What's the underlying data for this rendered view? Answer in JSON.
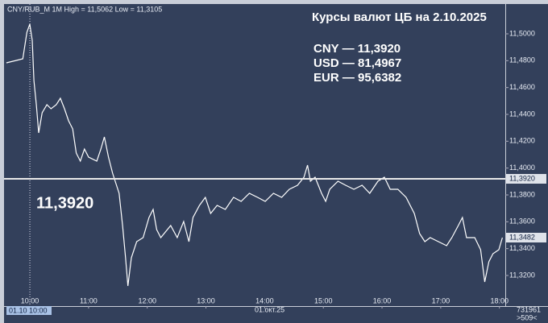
{
  "chart_data": {
    "type": "line",
    "header": "CNY/RUB_M 1M High = 11,5062 Low = 11,3105",
    "title": "Курсы валют ЦБ на 2.10.2025",
    "rates": [
      "CNY — 11,3920",
      "USD — 81,4967",
      "EUR — 95,6382"
    ],
    "color": "#ffffff",
    "x": [
      9.6,
      9.77,
      9.88,
      9.95,
      10.0,
      10.04,
      10.07,
      10.11,
      10.15,
      10.21,
      10.29,
      10.36,
      10.45,
      10.52,
      10.59,
      10.66,
      10.73,
      10.79,
      10.86,
      10.93,
      11.0,
      11.14,
      11.21,
      11.27,
      11.34,
      11.41,
      11.52,
      11.58,
      11.63,
      11.67,
      11.73,
      11.82,
      11.93,
      12.03,
      12.1,
      12.16,
      12.23,
      12.4,
      12.51,
      12.62,
      12.71,
      12.78,
      12.89,
      12.99,
      13.08,
      13.19,
      13.33,
      13.47,
      13.6,
      13.74,
      13.88,
      14.01,
      14.15,
      14.29,
      14.42,
      14.56,
      14.67,
      14.73,
      14.78,
      14.86,
      14.97,
      15.04,
      15.11,
      15.25,
      15.38,
      15.52,
      15.66,
      15.79,
      15.93,
      16.04,
      16.14,
      16.27,
      16.41,
      16.55,
      16.64,
      16.73,
      16.82,
      16.96,
      17.1,
      17.19,
      17.3,
      17.37,
      17.44,
      17.58,
      17.68,
      17.75,
      17.82,
      17.89,
      17.99,
      18.05
    ],
    "values": [
      11.4784,
      11.4802,
      11.4814,
      11.5012,
      11.5072,
      11.4952,
      11.4652,
      11.4472,
      11.4262,
      11.4412,
      11.4472,
      11.4442,
      11.4472,
      11.452,
      11.4442,
      11.4352,
      11.4292,
      11.4112,
      11.4052,
      11.4142,
      11.4082,
      11.4052,
      11.4142,
      11.4232,
      11.4082,
      11.3962,
      11.3812,
      11.3572,
      11.3332,
      11.3122,
      11.3332,
      11.3452,
      11.3482,
      11.3632,
      11.3692,
      11.3542,
      11.3482,
      11.3572,
      11.3482,
      11.3602,
      11.3452,
      11.3632,
      11.3722,
      11.3782,
      11.3662,
      11.3722,
      11.3692,
      11.3782,
      11.3752,
      11.3812,
      11.3782,
      11.3752,
      11.3812,
      11.3782,
      11.3842,
      11.3872,
      11.3932,
      11.4022,
      11.3902,
      11.3932,
      11.3812,
      11.3752,
      11.3842,
      11.3902,
      11.3872,
      11.3842,
      11.3872,
      11.3812,
      11.3902,
      11.3932,
      11.3842,
      11.3842,
      11.3782,
      11.3662,
      11.3512,
      11.3452,
      11.3482,
      11.3452,
      11.3422,
      11.3482,
      11.3572,
      11.3632,
      11.3482,
      11.3482,
      11.3392,
      11.3152,
      11.3302,
      11.3362,
      11.3392,
      11.3482
    ],
    "xlim": [
      9.56,
      18.1
    ],
    "ylim": [
      11.2972,
      11.5222
    ],
    "xticks": [
      {
        "value": 10,
        "label": "10:00"
      },
      {
        "value": 11,
        "label": "11:00"
      },
      {
        "value": 12,
        "label": "12:00"
      },
      {
        "value": 13,
        "label": "13:00"
      },
      {
        "value": 14,
        "label": "14:00"
      },
      {
        "value": 15,
        "label": "15:00"
      },
      {
        "value": 16,
        "label": "16:00"
      },
      {
        "value": 17,
        "label": "17:00"
      },
      {
        "value": 18,
        "label": "18:00"
      }
    ],
    "yticks": [
      {
        "value": 11.5,
        "label": "11,5000"
      },
      {
        "value": 11.48,
        "label": "11,4800"
      },
      {
        "value": 11.46,
        "label": "11,4600"
      },
      {
        "value": 11.44,
        "label": "11,4400"
      },
      {
        "value": 11.42,
        "label": "11,4200"
      },
      {
        "value": 11.4,
        "label": "11,4000"
      },
      {
        "value": 11.38,
        "label": "11,3800"
      },
      {
        "value": 11.36,
        "label": "11,3600"
      },
      {
        "value": 11.34,
        "label": "11,3400"
      },
      {
        "value": 11.32,
        "label": "11,3200"
      }
    ],
    "hline": {
      "value": 11.392,
      "label": "11,3920"
    },
    "last": {
      "value": 11.3482,
      "label": "11,3482"
    },
    "cursor": {
      "value": 10,
      "label": "01.10 10:00"
    },
    "date_label": "01.окт.25",
    "counter": "731961",
    "counter2": ">509<"
  }
}
